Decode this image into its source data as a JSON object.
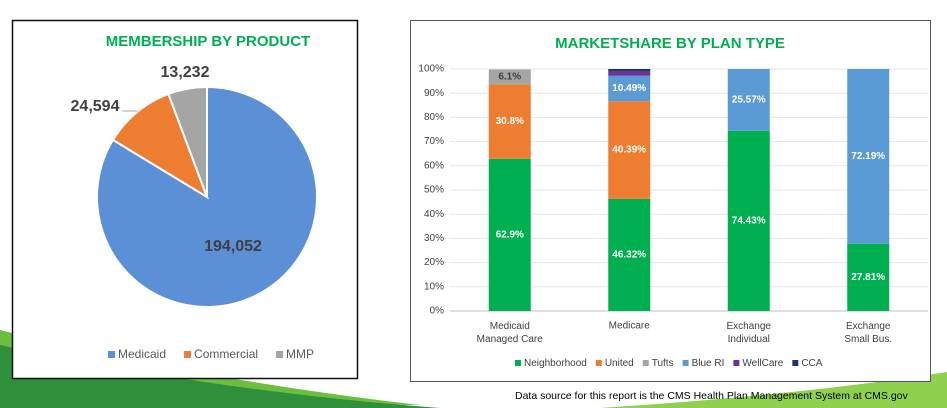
{
  "chart_data": [
    {
      "type": "pie",
      "title": "MEMBERSHIP BY PRODUCT",
      "categories": [
        "Medicaid",
        "Commercial",
        "MMP"
      ],
      "values": [
        194052,
        24594,
        13232
      ],
      "value_labels": [
        "194,052",
        "24,594",
        "13,232"
      ],
      "colors": [
        "#5b8fd6",
        "#ed7d31",
        "#a5a5a5"
      ],
      "legend": "bottom"
    },
    {
      "type": "stacked_bar",
      "title": "MARKETSHARE BY PLAN TYPE",
      "categories": [
        "Medicaid Managed Care",
        "Medicare",
        "Exchange Individual",
        "Exchange Small Bus."
      ],
      "series": [
        {
          "name": "Neighborhood",
          "color": "#00b050",
          "values": [
            62.9,
            46.32,
            74.43,
            27.81
          ],
          "value_labels": [
            "62.9%",
            "46.32%",
            "74.43%",
            "27.81%"
          ]
        },
        {
          "name": "United",
          "color": "#ed7d31",
          "values": [
            30.8,
            40.39,
            null,
            null
          ],
          "value_labels": [
            "30.8%",
            "40.39%",
            null,
            null
          ]
        },
        {
          "name": "Tufts",
          "color": "#a5a5a5",
          "values": [
            6.1,
            null,
            null,
            null
          ],
          "value_labels": [
            "6.1%",
            null,
            null,
            null
          ]
        },
        {
          "name": "Blue RI",
          "color": "#5b9bd5",
          "values": [
            null,
            10.49,
            25.57,
            72.19
          ],
          "value_labels": [
            null,
            "10.49%",
            "25.57%",
            "72.19%"
          ]
        },
        {
          "name": "WellCare",
          "color": "#7030a0",
          "values": [
            null,
            1.8,
            null,
            null
          ],
          "value_labels": [
            null,
            null,
            null,
            null
          ]
        },
        {
          "name": "CCA",
          "color": "#1f3864",
          "values": [
            null,
            1.0,
            null,
            null
          ],
          "value_labels": [
            null,
            null,
            null,
            null
          ]
        }
      ],
      "ylim": [
        0,
        100
      ],
      "yticks": [
        {
          "value": 0,
          "label": "0%"
        },
        {
          "value": 10,
          "label": "10%"
        },
        {
          "value": 20,
          "label": "20%"
        },
        {
          "value": 30,
          "label": "30%"
        },
        {
          "value": 40,
          "label": "40%"
        },
        {
          "value": 50,
          "label": "50%"
        },
        {
          "value": 60,
          "label": "60%"
        },
        {
          "value": 70,
          "label": "70%"
        },
        {
          "value": 80,
          "label": "80%"
        },
        {
          "value": 90,
          "label": "90%"
        },
        {
          "value": 100,
          "label": "100%"
        }
      ],
      "grid": true,
      "legend": "bottom"
    }
  ],
  "footer": "Data source for this report is the CMS Health Plan Management System at CMS.gov"
}
